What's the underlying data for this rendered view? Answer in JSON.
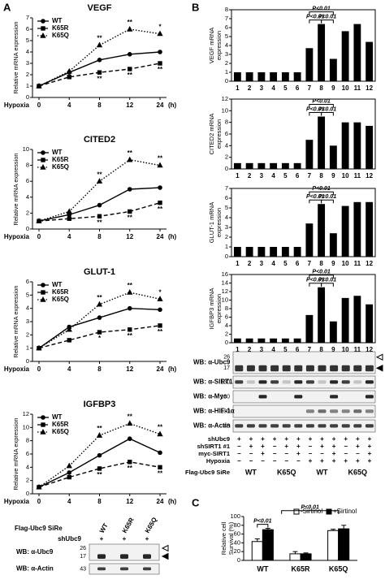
{
  "panel_labels": [
    "A",
    "B",
    "C"
  ],
  "chart_data": [
    {
      "type": "line",
      "title": "VEGF",
      "ylabel": "Relative mRNA expression",
      "xlabel": "Hypoxia",
      "xunit": "(h)",
      "categories": [
        "0",
        "4",
        "8",
        "12",
        "24"
      ],
      "ylim": [
        0,
        7
      ],
      "yticks": [
        0,
        1,
        2,
        3,
        4,
        5,
        6,
        7
      ],
      "series": [
        {
          "name": "WT",
          "color": "#000000",
          "dash": "solid",
          "marker": "circle",
          "values": [
            1,
            2.2,
            3.3,
            3.8,
            4.0
          ],
          "significance": [
            null,
            null,
            null,
            null,
            null
          ]
        },
        {
          "name": "K65R",
          "color": "#000000",
          "dash": "dashed",
          "marker": "square",
          "values": [
            1,
            1.8,
            2.2,
            2.5,
            3.0
          ],
          "significance": [
            null,
            null,
            "**",
            "**",
            "**"
          ]
        },
        {
          "name": "K65Q",
          "color": "#000000",
          "dash": "dotted",
          "marker": "triangle",
          "values": [
            1,
            2.3,
            4.6,
            6.0,
            5.6
          ],
          "significance": [
            null,
            null,
            "**",
            "**",
            "*"
          ]
        }
      ]
    },
    {
      "type": "line",
      "title": "CITED2",
      "ylabel": "Relative mRNA expression",
      "xlabel": "Hypoxia",
      "xunit": "(h)",
      "categories": [
        "0",
        "4",
        "8",
        "12",
        "24"
      ],
      "ylim": [
        0,
        10
      ],
      "yticks": [
        0,
        2,
        4,
        6,
        8,
        10
      ],
      "series": [
        {
          "name": "WT",
          "color": "#000000",
          "dash": "solid",
          "marker": "circle",
          "values": [
            1,
            1.8,
            3.0,
            5.0,
            5.2
          ],
          "significance": [
            null,
            null,
            null,
            null,
            null
          ]
        },
        {
          "name": "K65R",
          "color": "#000000",
          "dash": "dashed",
          "marker": "square",
          "values": [
            1,
            1.3,
            1.6,
            2.2,
            3.3
          ],
          "significance": [
            null,
            null,
            "**",
            "**",
            "**"
          ]
        },
        {
          "name": "K65Q",
          "color": "#000000",
          "dash": "dotted",
          "marker": "triangle",
          "values": [
            1,
            2.2,
            6.0,
            8.7,
            8.0
          ],
          "significance": [
            null,
            null,
            "**",
            "**",
            "**"
          ]
        }
      ]
    },
    {
      "type": "line",
      "title": "GLUT-1",
      "ylabel": "Relative mRNA expression",
      "xlabel": "Hypoxia",
      "xunit": "(h)",
      "categories": [
        "0",
        "4",
        "8",
        "12",
        "24"
      ],
      "ylim": [
        0,
        6
      ],
      "yticks": [
        0,
        1,
        2,
        3,
        4,
        5,
        6
      ],
      "series": [
        {
          "name": "WT",
          "color": "#000000",
          "dash": "solid",
          "marker": "circle",
          "values": [
            1,
            2.6,
            3.3,
            4.0,
            3.9
          ],
          "significance": [
            null,
            null,
            null,
            null,
            null
          ]
        },
        {
          "name": "K65R",
          "color": "#000000",
          "dash": "dashed",
          "marker": "square",
          "values": [
            1,
            1.6,
            2.2,
            2.4,
            2.7
          ],
          "significance": [
            null,
            null,
            "*",
            "**",
            "**"
          ]
        },
        {
          "name": "K65Q",
          "color": "#000000",
          "dash": "dotted",
          "marker": "triangle",
          "values": [
            1,
            2.4,
            4.3,
            5.2,
            4.7
          ],
          "significance": [
            null,
            null,
            "**",
            "**",
            "*"
          ]
        }
      ]
    },
    {
      "type": "line",
      "title": "IGFBP3",
      "ylabel": "Relative mRNA expression",
      "xlabel": "Hypoxia",
      "xunit": "(h)",
      "categories": [
        "0",
        "4",
        "8",
        "12",
        "24"
      ],
      "ylim": [
        0,
        12
      ],
      "yticks": [
        0,
        2,
        4,
        6,
        8,
        10,
        12
      ],
      "series": [
        {
          "name": "WT",
          "color": "#000000",
          "dash": "solid",
          "marker": "circle",
          "values": [
            1,
            3.2,
            5.8,
            8.3,
            6.2
          ],
          "significance": [
            null,
            null,
            null,
            null,
            null
          ]
        },
        {
          "name": "K65R",
          "color": "#000000",
          "dash": "dashed",
          "marker": "square",
          "values": [
            1,
            2.5,
            3.8,
            4.8,
            4.0
          ],
          "significance": [
            null,
            null,
            "**",
            "**",
            "**"
          ]
        },
        {
          "name": "K65Q",
          "color": "#000000",
          "dash": "dotted",
          "marker": "triangle",
          "values": [
            1,
            4.2,
            8.8,
            10.6,
            9.0
          ],
          "significance": [
            null,
            null,
            "**",
            "**",
            "**"
          ]
        }
      ]
    },
    {
      "type": "bar",
      "ylabel": [
        "VEGF mRNA",
        "expression"
      ],
      "categories": [
        "1",
        "2",
        "3",
        "4",
        "5",
        "6",
        "7",
        "8",
        "9",
        "10",
        "11",
        "12"
      ],
      "values": [
        1,
        1,
        1,
        1,
        1,
        1,
        3.7,
        6.4,
        2.5,
        5.6,
        6.4,
        4.4
      ],
      "color": "#000000",
      "ylim": [
        0,
        8
      ],
      "yticks": [
        0,
        1,
        2,
        3,
        4,
        5,
        6,
        7,
        8
      ],
      "brackets": [
        {
          "label": "P<0.01",
          "between": [
            "7",
            "9"
          ]
        },
        {
          "label": "P<0.01",
          "between": [
            "7",
            "8"
          ]
        },
        {
          "label": "P<0.01",
          "between": [
            "8",
            "9"
          ]
        }
      ]
    },
    {
      "type": "bar",
      "ylabel": [
        "CITED2 mRNA",
        "expression"
      ],
      "categories": [
        "1",
        "2",
        "3",
        "4",
        "5",
        "6",
        "7",
        "8",
        "9",
        "10",
        "11",
        "12"
      ],
      "values": [
        1,
        1,
        1,
        1,
        1,
        1,
        5,
        9,
        4,
        8,
        8,
        7.4
      ],
      "color": "#000000",
      "ylim": [
        0,
        12
      ],
      "yticks": [
        0,
        2,
        4,
        6,
        8,
        10,
        12
      ],
      "brackets": [
        {
          "label": "P<0.01",
          "between": [
            "7",
            "9"
          ]
        },
        {
          "label": "P<0.01",
          "between": [
            "7",
            "8"
          ]
        },
        {
          "label": "P<0.01",
          "between": [
            "8",
            "9"
          ]
        }
      ]
    },
    {
      "type": "bar",
      "ylabel": [
        "GLUT-1 mRNA",
        "expression"
      ],
      "categories": [
        "1",
        "2",
        "3",
        "4",
        "5",
        "6",
        "7",
        "8",
        "9",
        "10",
        "11",
        "12"
      ],
      "values": [
        1,
        1,
        1,
        1,
        1,
        1,
        3.4,
        5.4,
        2.4,
        5.2,
        5.6,
        5.6
      ],
      "color": "#000000",
      "ylim": [
        0,
        7
      ],
      "yticks": [
        0,
        1,
        2,
        3,
        4,
        5,
        6,
        7
      ],
      "brackets": [
        {
          "label": "P<0.01",
          "between": [
            "7",
            "9"
          ]
        },
        {
          "label": "P<0.01",
          "between": [
            "7",
            "8"
          ]
        },
        {
          "label": "P<0.01",
          "between": [
            "8",
            "9"
          ]
        }
      ]
    },
    {
      "type": "bar",
      "ylabel": [
        "IGFBP3 mRNA",
        "expression"
      ],
      "categories": [
        "1",
        "2",
        "3",
        "4",
        "5",
        "6",
        "7",
        "8",
        "9",
        "10",
        "11",
        "12"
      ],
      "values": [
        1,
        1,
        1,
        1,
        1,
        1,
        6.5,
        13,
        5,
        10.5,
        11,
        9
      ],
      "color": "#000000",
      "ylim": [
        0,
        16
      ],
      "yticks": [
        0,
        2,
        4,
        6,
        8,
        10,
        12,
        14,
        16
      ],
      "brackets": [
        {
          "label": "P<0.01",
          "between": [
            "7",
            "9"
          ]
        },
        {
          "label": "P<0.01",
          "between": [
            "7",
            "8"
          ]
        },
        {
          "label": "P<0.01",
          "between": [
            "8",
            "9"
          ]
        }
      ]
    },
    {
      "type": "bar",
      "ylabel": [
        "Relative cell",
        "Survival (%)"
      ],
      "categories": [
        "WT",
        "K65R",
        "K65Q"
      ],
      "ylim": [
        0,
        100
      ],
      "yticks": [
        0,
        20,
        40,
        60,
        80,
        100
      ],
      "series": [
        {
          "name": "-Sirtinol",
          "color": "#ffffff",
          "values": [
            43,
            15,
            68
          ],
          "errors": [
            6,
            5,
            3
          ]
        },
        {
          "name": "+Sirtinol",
          "color": "#000000",
          "values": [
            70,
            15,
            72
          ],
          "errors": [
            3,
            2,
            8
          ]
        }
      ],
      "brackets": [
        {
          "label": "P<0.01",
          "between": [
            "WT"
          ]
        },
        {
          "label": "P<0.01",
          "between": [
            "WT",
            "K65Q"
          ]
        }
      ]
    }
  ],
  "blots": [
    {
      "header": "Flag-Ubc9 SiRe",
      "lanes": [
        "WT",
        "K65R",
        "K65Q"
      ],
      "treatments": [
        {
          "name": "shUbc9",
          "marks": [
            "+",
            "+",
            "+"
          ]
        }
      ],
      "rows": [
        {
          "label": "WB: α-Ubc9",
          "markers": [
            "26",
            "17"
          ]
        },
        {
          "label": "WB: α-Actin",
          "markers": [
            "43"
          ]
        }
      ]
    },
    {
      "header": "Flag-Ubc9 SiRe",
      "groups": [
        "WT",
        "K65Q",
        "WT",
        "K65Q"
      ],
      "treatments": [
        {
          "name": "shUbc9",
          "marks": [
            "+",
            "+",
            "+",
            "+",
            "+",
            "+",
            "+",
            "+",
            "+",
            "+",
            "+",
            "+"
          ]
        },
        {
          "name": "shSIRT1 #1",
          "marks": [
            "−",
            "+",
            "+",
            "−",
            "+",
            "+",
            "−",
            "+",
            "+",
            "−",
            "+",
            "+"
          ]
        },
        {
          "name": "myc-SIRT1",
          "marks": [
            "−",
            "−",
            "+",
            "−",
            "−",
            "+",
            "−",
            "−",
            "+",
            "−",
            "−",
            "+"
          ]
        },
        {
          "name": "Hypoxia",
          "marks": [
            "−",
            "−",
            "−",
            "−",
            "−",
            "−",
            "+",
            "+",
            "+",
            "+",
            "+",
            "+"
          ]
        }
      ],
      "rows": [
        {
          "label": "WB: α-Ubc9",
          "markers": [
            "26",
            "17"
          ]
        },
        {
          "label": "WB: α-SIRT1",
          "markers": [
            "130"
          ]
        },
        {
          "label": "WB: α-Myc",
          "markers": [
            "130"
          ]
        },
        {
          "label": "WB: α-HIF-1α",
          "markers": [
            "130"
          ]
        },
        {
          "label": "WB: α-Actin",
          "markers": [
            "43"
          ]
        }
      ]
    }
  ]
}
